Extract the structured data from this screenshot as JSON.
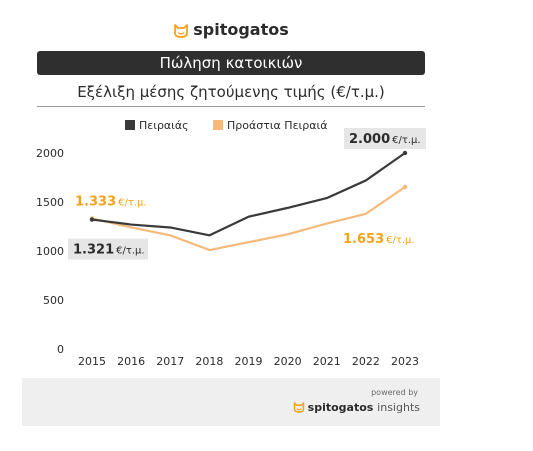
{
  "brand": {
    "name": "spitogatos",
    "icon": "cat-face-icon",
    "accent": "#f6a21a"
  },
  "section_title": "Πώληση κατοικιών",
  "subtitle": "Εξέλιξη μέσης ζητούμενης τιμής (€/τ.μ.)",
  "footer": {
    "powered_by": "powered by",
    "brand_name": "spitogatos",
    "brand_suffix": "insights"
  },
  "chart_data": {
    "type": "line",
    "x": [
      2015,
      2016,
      2017,
      2018,
      2019,
      2020,
      2021,
      2022,
      2023
    ],
    "series": [
      {
        "name": "Πειραιάς",
        "color": "#3a3a3a",
        "values": [
          1321,
          1270,
          1240,
          1160,
          1350,
          1440,
          1540,
          1720,
          2000
        ]
      },
      {
        "name": "Προάστια Πειραιά",
        "color": "#f6b97a",
        "values": [
          1333,
          1240,
          1160,
          1010,
          1090,
          1170,
          1280,
          1380,
          1653
        ]
      }
    ],
    "ylim": [
      0,
      2000
    ],
    "yticks": [
      0,
      500,
      1000,
      1500,
      2000
    ],
    "legend_position": "top",
    "grid": false,
    "annotations": [
      {
        "series": 0,
        "index": 0,
        "text": "1.321",
        "unit": "€/τ.μ.",
        "style": "grey-box"
      },
      {
        "series": 0,
        "index": 8,
        "text": "2.000",
        "unit": "€/τ.μ.",
        "style": "grey-box"
      },
      {
        "series": 1,
        "index": 0,
        "text": "1.333",
        "unit": "€/τ.μ.",
        "style": "orange-text"
      },
      {
        "series": 1,
        "index": 8,
        "text": "1.653",
        "unit": "€/τ.μ.",
        "style": "orange-text"
      }
    ]
  }
}
